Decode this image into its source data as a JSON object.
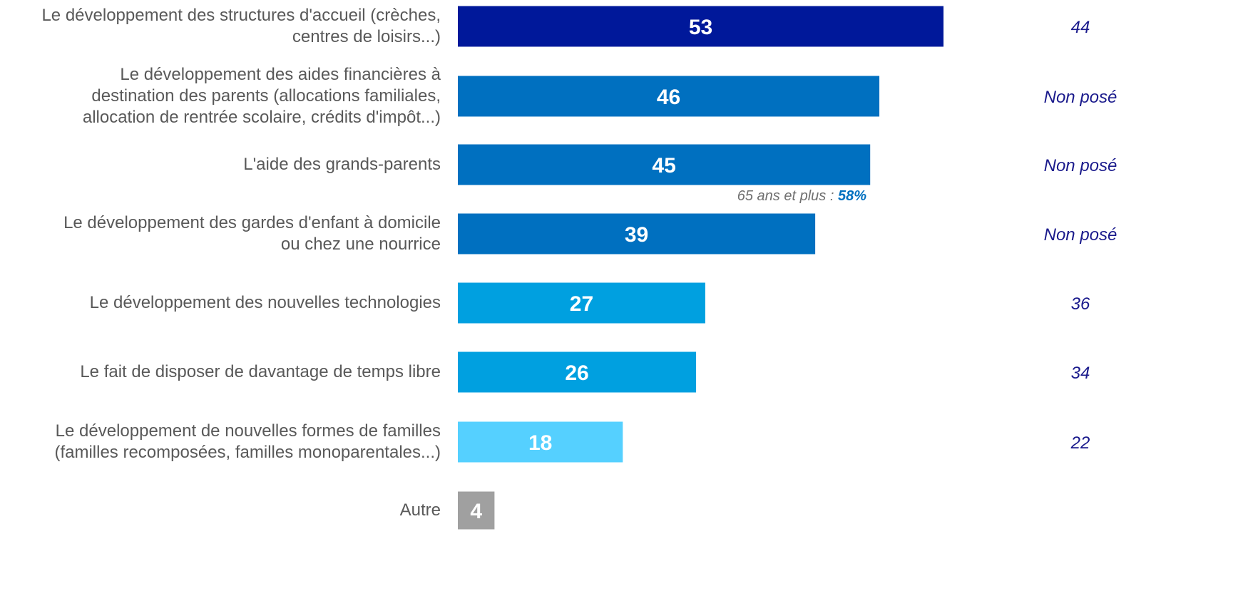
{
  "chart_data": {
    "type": "bar",
    "orientation": "horizontal",
    "categories": [
      "Le développement des structures d'accueil (crèches,\ncentres de loisirs...)",
      "Le développement des aides financières à\ndestination des parents (allocations familiales,\nallocation de rentrée scolaire, crédits d'impôt...)",
      "L'aide des grands-parents",
      "Le développement des gardes d'enfant à domicile\nou chez une nourrice",
      "Le développement des nouvelles technologies",
      "Le fait de disposer de davantage de temps libre",
      "Le développement de nouvelles formes de familles\n(familles recomposées, familles monoparentales...)",
      "Autre"
    ],
    "values": [
      53,
      46,
      45,
      39,
      27,
      26,
      18,
      4
    ],
    "colors": [
      "#00189a",
      "#0070c0",
      "#0070c0",
      "#0070c0",
      "#00a0e0",
      "#00a0e0",
      "#55d0ff",
      "#a0a0a0"
    ],
    "xlim": [
      0,
      53
    ],
    "comparison": [
      44,
      "Non posé",
      "Non posé",
      "Non posé",
      36,
      34,
      22,
      null
    ],
    "annotation": {
      "category": 2,
      "text": "65 ans et plus :",
      "value": 58,
      "value_label": "58%"
    }
  }
}
